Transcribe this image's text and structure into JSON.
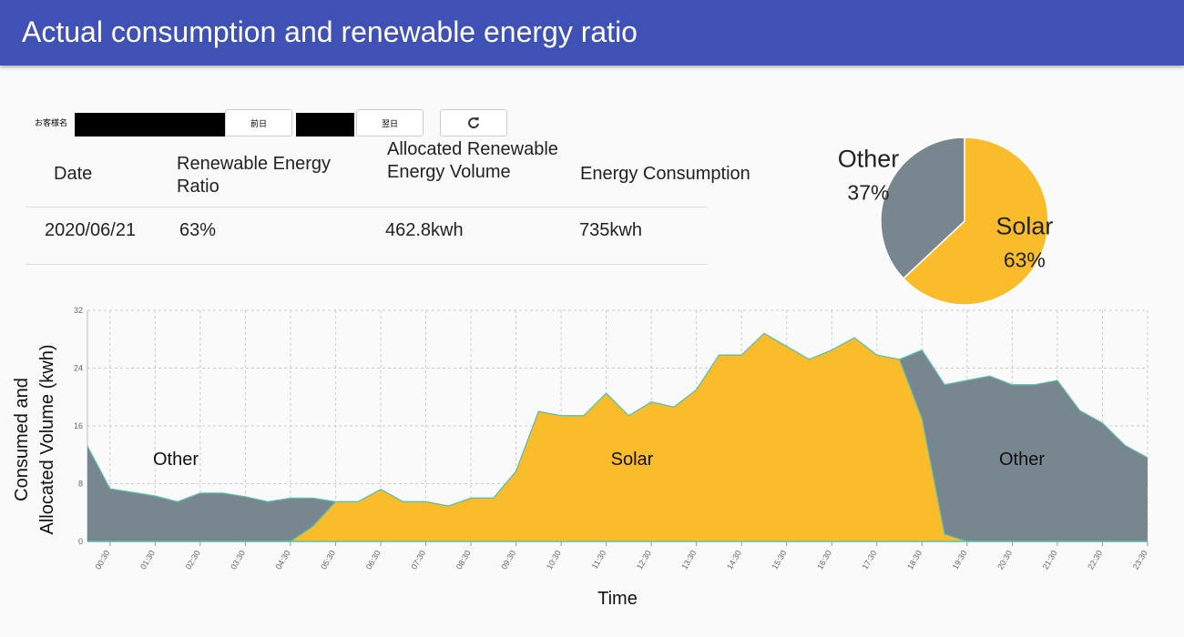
{
  "header": {
    "title": "Actual consumption and renewable energy ratio"
  },
  "controls": {
    "customer_label": "お客様名",
    "prev_button": "前日",
    "next_button": "翌日"
  },
  "table": {
    "columns": [
      "Date",
      "Renewable Energy Ratio",
      "Allocated Renewable Energy Volume",
      "Energy Consumption"
    ],
    "rows": [
      [
        "2020/06/21",
        "63%",
        "462.8kwh",
        "735kwh"
      ]
    ]
  },
  "chart_data": [
    {
      "type": "pie",
      "categories": [
        "Solar",
        "Other"
      ],
      "values": [
        63,
        37
      ],
      "value_labels": [
        "63%",
        "37%"
      ],
      "colors": [
        "#fbbc2c",
        "#78878f"
      ]
    },
    {
      "type": "area",
      "categories": [
        null,
        "00:30",
        null,
        "01:30",
        null,
        "02:30",
        null,
        "03:30",
        null,
        "04:30",
        null,
        "05:30",
        null,
        "06:30",
        null,
        "07:30",
        null,
        "08:30",
        null,
        "09:30",
        null,
        "10:30",
        null,
        "11:30",
        null,
        "12:30",
        null,
        "13:30",
        null,
        "14:30",
        null,
        "15:30",
        null,
        "16:30",
        null,
        "17:30",
        null,
        "18:30",
        null,
        "19:30",
        null,
        "20:30",
        null,
        "21:30",
        null,
        "22:30",
        null,
        "23:30"
      ],
      "series": [
        {
          "name": "Other",
          "color": "#78878f",
          "values": [
            13.2,
            7.3,
            6.8,
            6.3,
            5.5,
            6.7,
            6.7,
            6.2,
            5.5,
            6,
            6,
            5.5,
            5.5,
            7.2,
            5.5,
            5.5,
            4.9,
            6,
            6,
            9.7,
            18,
            17.4,
            17.4,
            20.5,
            17.4,
            19.3,
            18.6,
            21,
            25.8,
            25.8,
            28.8,
            27,
            25.2,
            26.5,
            28.2,
            25.8,
            25.2,
            26.5,
            21.7,
            22.3,
            22.9,
            21.7,
            21.7,
            22.3,
            18.1,
            16.4,
            13.3,
            11.6
          ]
        },
        {
          "name": "Solar",
          "color": "#fbbc2c",
          "values": [
            0,
            0,
            0,
            0,
            0,
            0,
            0,
            0,
            0,
            0,
            2.1,
            5.5,
            5.5,
            7.2,
            5.5,
            5.5,
            4.9,
            6,
            6,
            9.7,
            18,
            17.4,
            17.4,
            20.5,
            17.4,
            19.3,
            18.6,
            21,
            25.8,
            25.8,
            28.8,
            27,
            25.2,
            26.5,
            28.2,
            25.8,
            25.2,
            17,
            1,
            0,
            0,
            0,
            0,
            0,
            0,
            0,
            0,
            0
          ]
        }
      ],
      "annotations": [
        "Other",
        "Solar",
        "Other"
      ],
      "xlabel": "Time",
      "ylabel": [
        "Consumed and",
        "Allocated Volume (kwh)"
      ],
      "ylim": [
        0,
        32
      ],
      "yticks": [
        0,
        8,
        16,
        24,
        32
      ],
      "grid": true
    }
  ]
}
